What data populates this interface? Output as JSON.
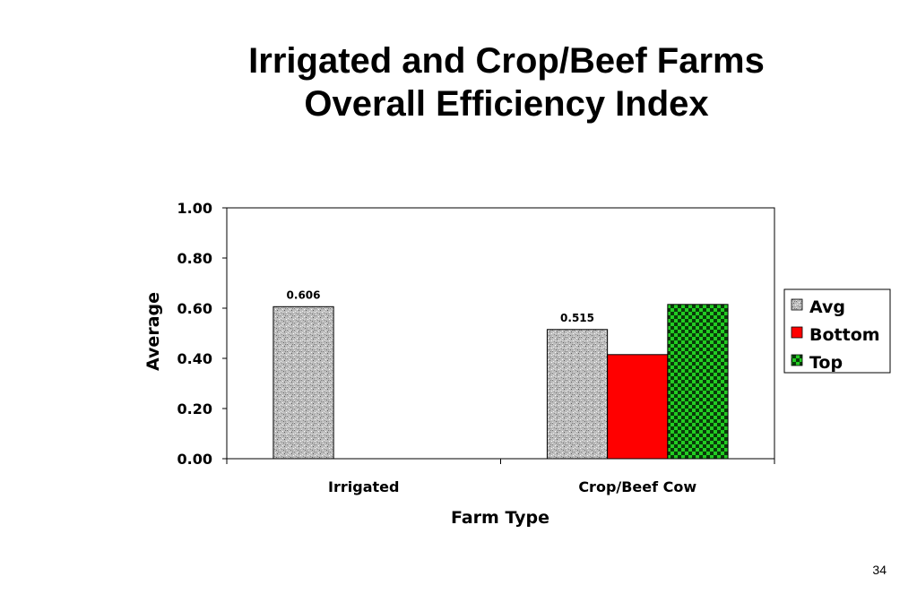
{
  "slide": {
    "title_line1": "Irrigated and Crop/Beef Farms",
    "title_line2": "Overall Efficiency Index",
    "page_number": "34"
  },
  "chart_data": {
    "type": "bar",
    "title": "",
    "xlabel": "Farm Type",
    "ylabel": "Average",
    "ylim": [
      0,
      1
    ],
    "yticks": [
      "0.00",
      "0.20",
      "0.40",
      "0.60",
      "0.80",
      "1.00"
    ],
    "categories": [
      "Irrigated",
      "Crop/Beef Cow"
    ],
    "series": [
      {
        "name": "Avg",
        "values": [
          0.606,
          0.515
        ],
        "data_labels": [
          "0.606",
          "0.515"
        ],
        "color": "#b8b8b8",
        "pattern": "speckled-gray"
      },
      {
        "name": "Bottom",
        "values": [
          null,
          0.415
        ],
        "data_labels": [
          null,
          null
        ],
        "color": "#ff0000",
        "pattern": "solid"
      },
      {
        "name": "Top",
        "values": [
          null,
          0.615
        ],
        "data_labels": [
          null,
          null
        ],
        "color": "#22cc22",
        "pattern": "checkerboard-green-black"
      }
    ],
    "grid": false,
    "legend_position": "right"
  }
}
